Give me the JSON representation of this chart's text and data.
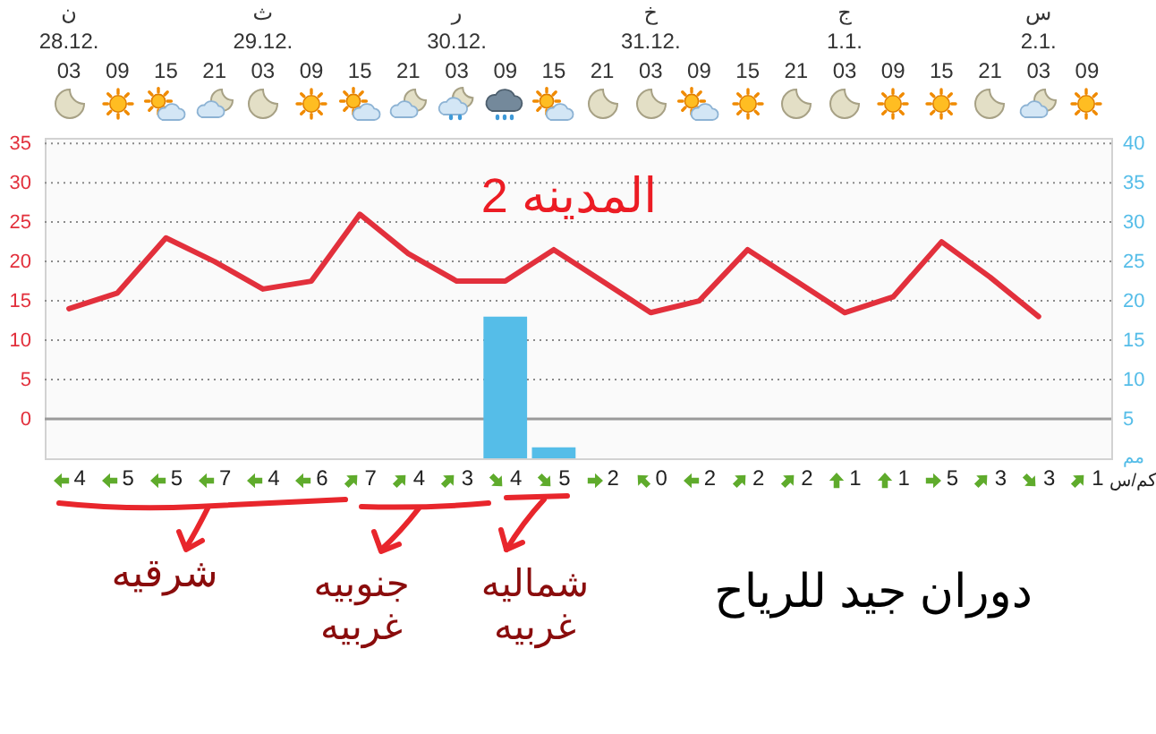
{
  "chart_data": {
    "type": "line",
    "title": "المدينه 2",
    "categories": [
      "03",
      "09",
      "15",
      "21",
      "03",
      "09",
      "15",
      "21",
      "03",
      "09",
      "15",
      "21",
      "03",
      "09",
      "15",
      "21",
      "03",
      "09",
      "15",
      "21",
      "03",
      "09"
    ],
    "ylim": [
      -5,
      35.7
    ],
    "yticks": [
      0,
      5,
      10,
      15,
      20,
      25,
      30,
      35
    ],
    "y2lim": [
      0,
      40.7
    ],
    "y2ticks": [
      5,
      10,
      15,
      20,
      25,
      30,
      35,
      40
    ],
    "y2label": "مم",
    "grid": "y",
    "ref_lines": [
      {
        "axis": "y",
        "value": 0,
        "color": "#9a9a9a"
      }
    ],
    "series": [
      {
        "type": "bar",
        "axis": "y2",
        "color": "#55bde8",
        "values": [
          null,
          null,
          null,
          null,
          null,
          null,
          null,
          null,
          null,
          18,
          1.4,
          null,
          null,
          null,
          null,
          null,
          null,
          null,
          null,
          null,
          null,
          null
        ]
      },
      {
        "color": "#e2303c",
        "values": [
          14,
          16,
          23,
          20,
          16.5,
          17.5,
          26,
          21,
          17.5,
          17.5,
          21.5,
          17.5,
          13.5,
          15,
          21.5,
          17.5,
          13.5,
          15.5,
          22.5,
          18,
          13,
          null
        ]
      }
    ],
    "annotations": [
      "ن",
      "ث",
      "ر",
      "خ",
      "ج",
      "س",
      "28.12.",
      "29.12.",
      "30.12.",
      "31.12.",
      "1.1.",
      "2.1.",
      "4",
      "5",
      "5",
      "7",
      "4",
      "6",
      "7",
      "4",
      "3",
      "4",
      "5",
      "2",
      "0",
      "2",
      "2",
      "2",
      "1",
      "1",
      "5",
      "3",
      "3",
      "1",
      "كم/س",
      "شرقيه",
      "جنوبيه غربيه",
      "شماليه غربيه",
      "دوران جيد للرياح"
    ]
  }
}
